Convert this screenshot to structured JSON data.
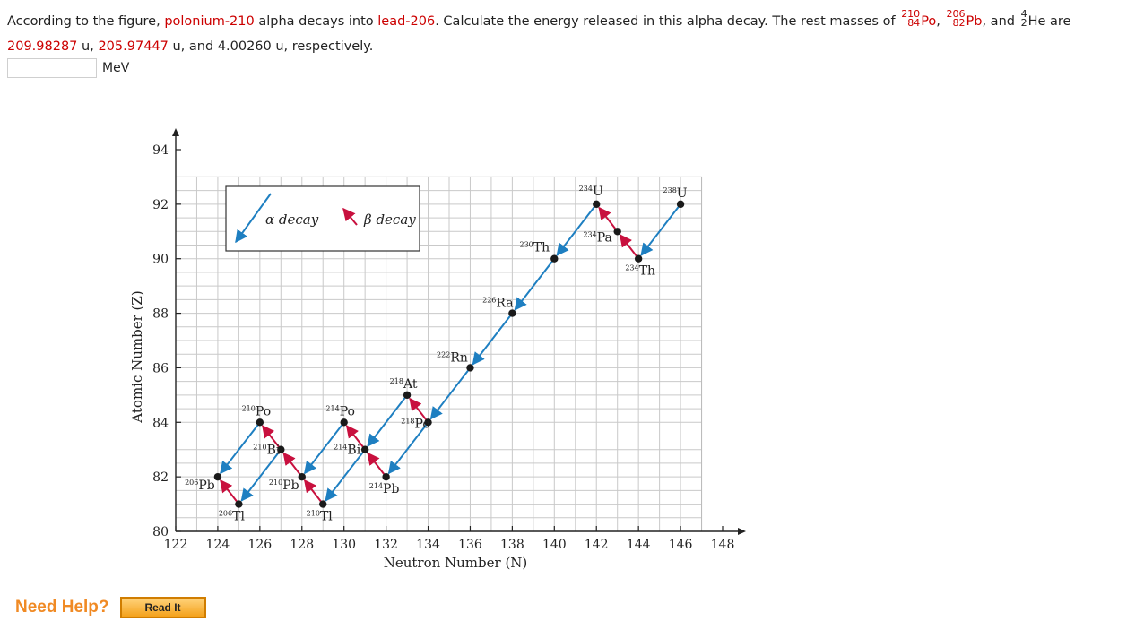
{
  "question": {
    "part1": "According to the figure, ",
    "parent": "polonium-210",
    "part2": " alpha decays into ",
    "daughter": "lead-206",
    "part3": ". Calculate the energy released in this alpha decay. The rest masses of ",
    "po": {
      "A": "210",
      "Z": "84",
      "sym": "Po"
    },
    "sep1": ", ",
    "pb": {
      "A": "206",
      "Z": "82",
      "sym": "Pb"
    },
    "sep2": ", and ",
    "he": {
      "A": "4",
      "Z": "2",
      "sym": "He"
    },
    "part4": " are ",
    "m1": "209.98287",
    "sep3": " u, ",
    "m2": "205.97447",
    "part5": " u, and 4.00260 u, respectively."
  },
  "answer": {
    "value": "",
    "unit": "MeV"
  },
  "help": {
    "label": "Need Help?",
    "button": "Read It"
  },
  "legend": {
    "alpha": "α decay",
    "beta": "β decay"
  },
  "colors": {
    "alpha": "#1e7fc1",
    "beta": "#c8103e",
    "point": "#1a1a1a"
  },
  "chart_data": {
    "type": "scatter",
    "xlabel": "Neutron Number (N)",
    "ylabel": "Atomic Number (Z)",
    "xlim": [
      122,
      148
    ],
    "ylim": [
      80,
      94
    ],
    "xticks": [
      122,
      124,
      126,
      128,
      130,
      132,
      134,
      136,
      138,
      140,
      142,
      144,
      146,
      148
    ],
    "yticks": [
      80,
      82,
      84,
      86,
      88,
      90,
      92,
      94
    ],
    "grid": true,
    "legend_position": "top-left",
    "nuclides": [
      {
        "label": "238U",
        "A": "238",
        "sym": "U",
        "N": 146,
        "Z": 92
      },
      {
        "label": "234Th",
        "A": "234",
        "sym": "Th",
        "N": 144,
        "Z": 90
      },
      {
        "label": "234Pa",
        "A": "234",
        "sym": "Pa",
        "N": 143,
        "Z": 91
      },
      {
        "label": "234U",
        "A": "234",
        "sym": "U",
        "N": 142,
        "Z": 92
      },
      {
        "label": "230Th",
        "A": "230",
        "sym": "Th",
        "N": 140,
        "Z": 90
      },
      {
        "label": "226Ra",
        "A": "226",
        "sym": "Ra",
        "N": 138,
        "Z": 88
      },
      {
        "label": "222Rn",
        "A": "222",
        "sym": "Rn",
        "N": 136,
        "Z": 86
      },
      {
        "label": "218Po",
        "A": "218",
        "sym": "Po",
        "N": 134,
        "Z": 84
      },
      {
        "label": "218At",
        "A": "218",
        "sym": "At",
        "N": 133,
        "Z": 85
      },
      {
        "label": "214Pb",
        "A": "214",
        "sym": "Pb",
        "N": 132,
        "Z": 82
      },
      {
        "label": "214Bi",
        "A": "214",
        "sym": "Bi",
        "N": 131,
        "Z": 83
      },
      {
        "label": "214Po",
        "A": "214",
        "sym": "Po",
        "N": 130,
        "Z": 84
      },
      {
        "label": "210Tl",
        "A": "210",
        "sym": "Tl",
        "N": 129,
        "Z": 81
      },
      {
        "label": "210Pb",
        "A": "210",
        "sym": "Pb",
        "N": 128,
        "Z": 82
      },
      {
        "label": "210Bi",
        "A": "210",
        "sym": "Bi",
        "N": 127,
        "Z": 83
      },
      {
        "label": "210Po",
        "A": "210",
        "sym": "Po",
        "N": 126,
        "Z": 84
      },
      {
        "label": "206Tl",
        "A": "206",
        "sym": "Tl",
        "N": 125,
        "Z": 81
      },
      {
        "label": "206Pb",
        "A": "206",
        "sym": "Pb",
        "N": 124,
        "Z": 82
      }
    ],
    "decays": [
      {
        "type": "alpha",
        "from": [
          146,
          92
        ],
        "to": [
          144,
          90
        ]
      },
      {
        "type": "beta",
        "from": [
          144,
          90
        ],
        "to": [
          143,
          91
        ]
      },
      {
        "type": "beta",
        "from": [
          143,
          91
        ],
        "to": [
          142,
          92
        ]
      },
      {
        "type": "alpha",
        "from": [
          142,
          92
        ],
        "to": [
          140,
          90
        ]
      },
      {
        "type": "alpha",
        "from": [
          140,
          90
        ],
        "to": [
          138,
          88
        ]
      },
      {
        "type": "alpha",
        "from": [
          138,
          88
        ],
        "to": [
          136,
          86
        ]
      },
      {
        "type": "alpha",
        "from": [
          136,
          86
        ],
        "to": [
          134,
          84
        ]
      },
      {
        "type": "beta",
        "from": [
          134,
          84
        ],
        "to": [
          133,
          85
        ]
      },
      {
        "type": "alpha",
        "from": [
          134,
          84
        ],
        "to": [
          132,
          82
        ]
      },
      {
        "type": "alpha",
        "from": [
          133,
          85
        ],
        "to": [
          131,
          83
        ]
      },
      {
        "type": "beta",
        "from": [
          132,
          82
        ],
        "to": [
          131,
          83
        ]
      },
      {
        "type": "beta",
        "from": [
          131,
          83
        ],
        "to": [
          130,
          84
        ]
      },
      {
        "type": "alpha",
        "from": [
          131,
          83
        ],
        "to": [
          129,
          81
        ]
      },
      {
        "type": "alpha",
        "from": [
          130,
          84
        ],
        "to": [
          128,
          82
        ]
      },
      {
        "type": "beta",
        "from": [
          129,
          81
        ],
        "to": [
          128,
          82
        ]
      },
      {
        "type": "beta",
        "from": [
          128,
          82
        ],
        "to": [
          127,
          83
        ]
      },
      {
        "type": "beta",
        "from": [
          127,
          83
        ],
        "to": [
          126,
          84
        ]
      },
      {
        "type": "alpha",
        "from": [
          127,
          83
        ],
        "to": [
          125,
          81
        ]
      },
      {
        "type": "alpha",
        "from": [
          126,
          84
        ],
        "to": [
          124,
          82
        ]
      },
      {
        "type": "beta",
        "from": [
          125,
          81
        ],
        "to": [
          124,
          82
        ]
      }
    ]
  }
}
